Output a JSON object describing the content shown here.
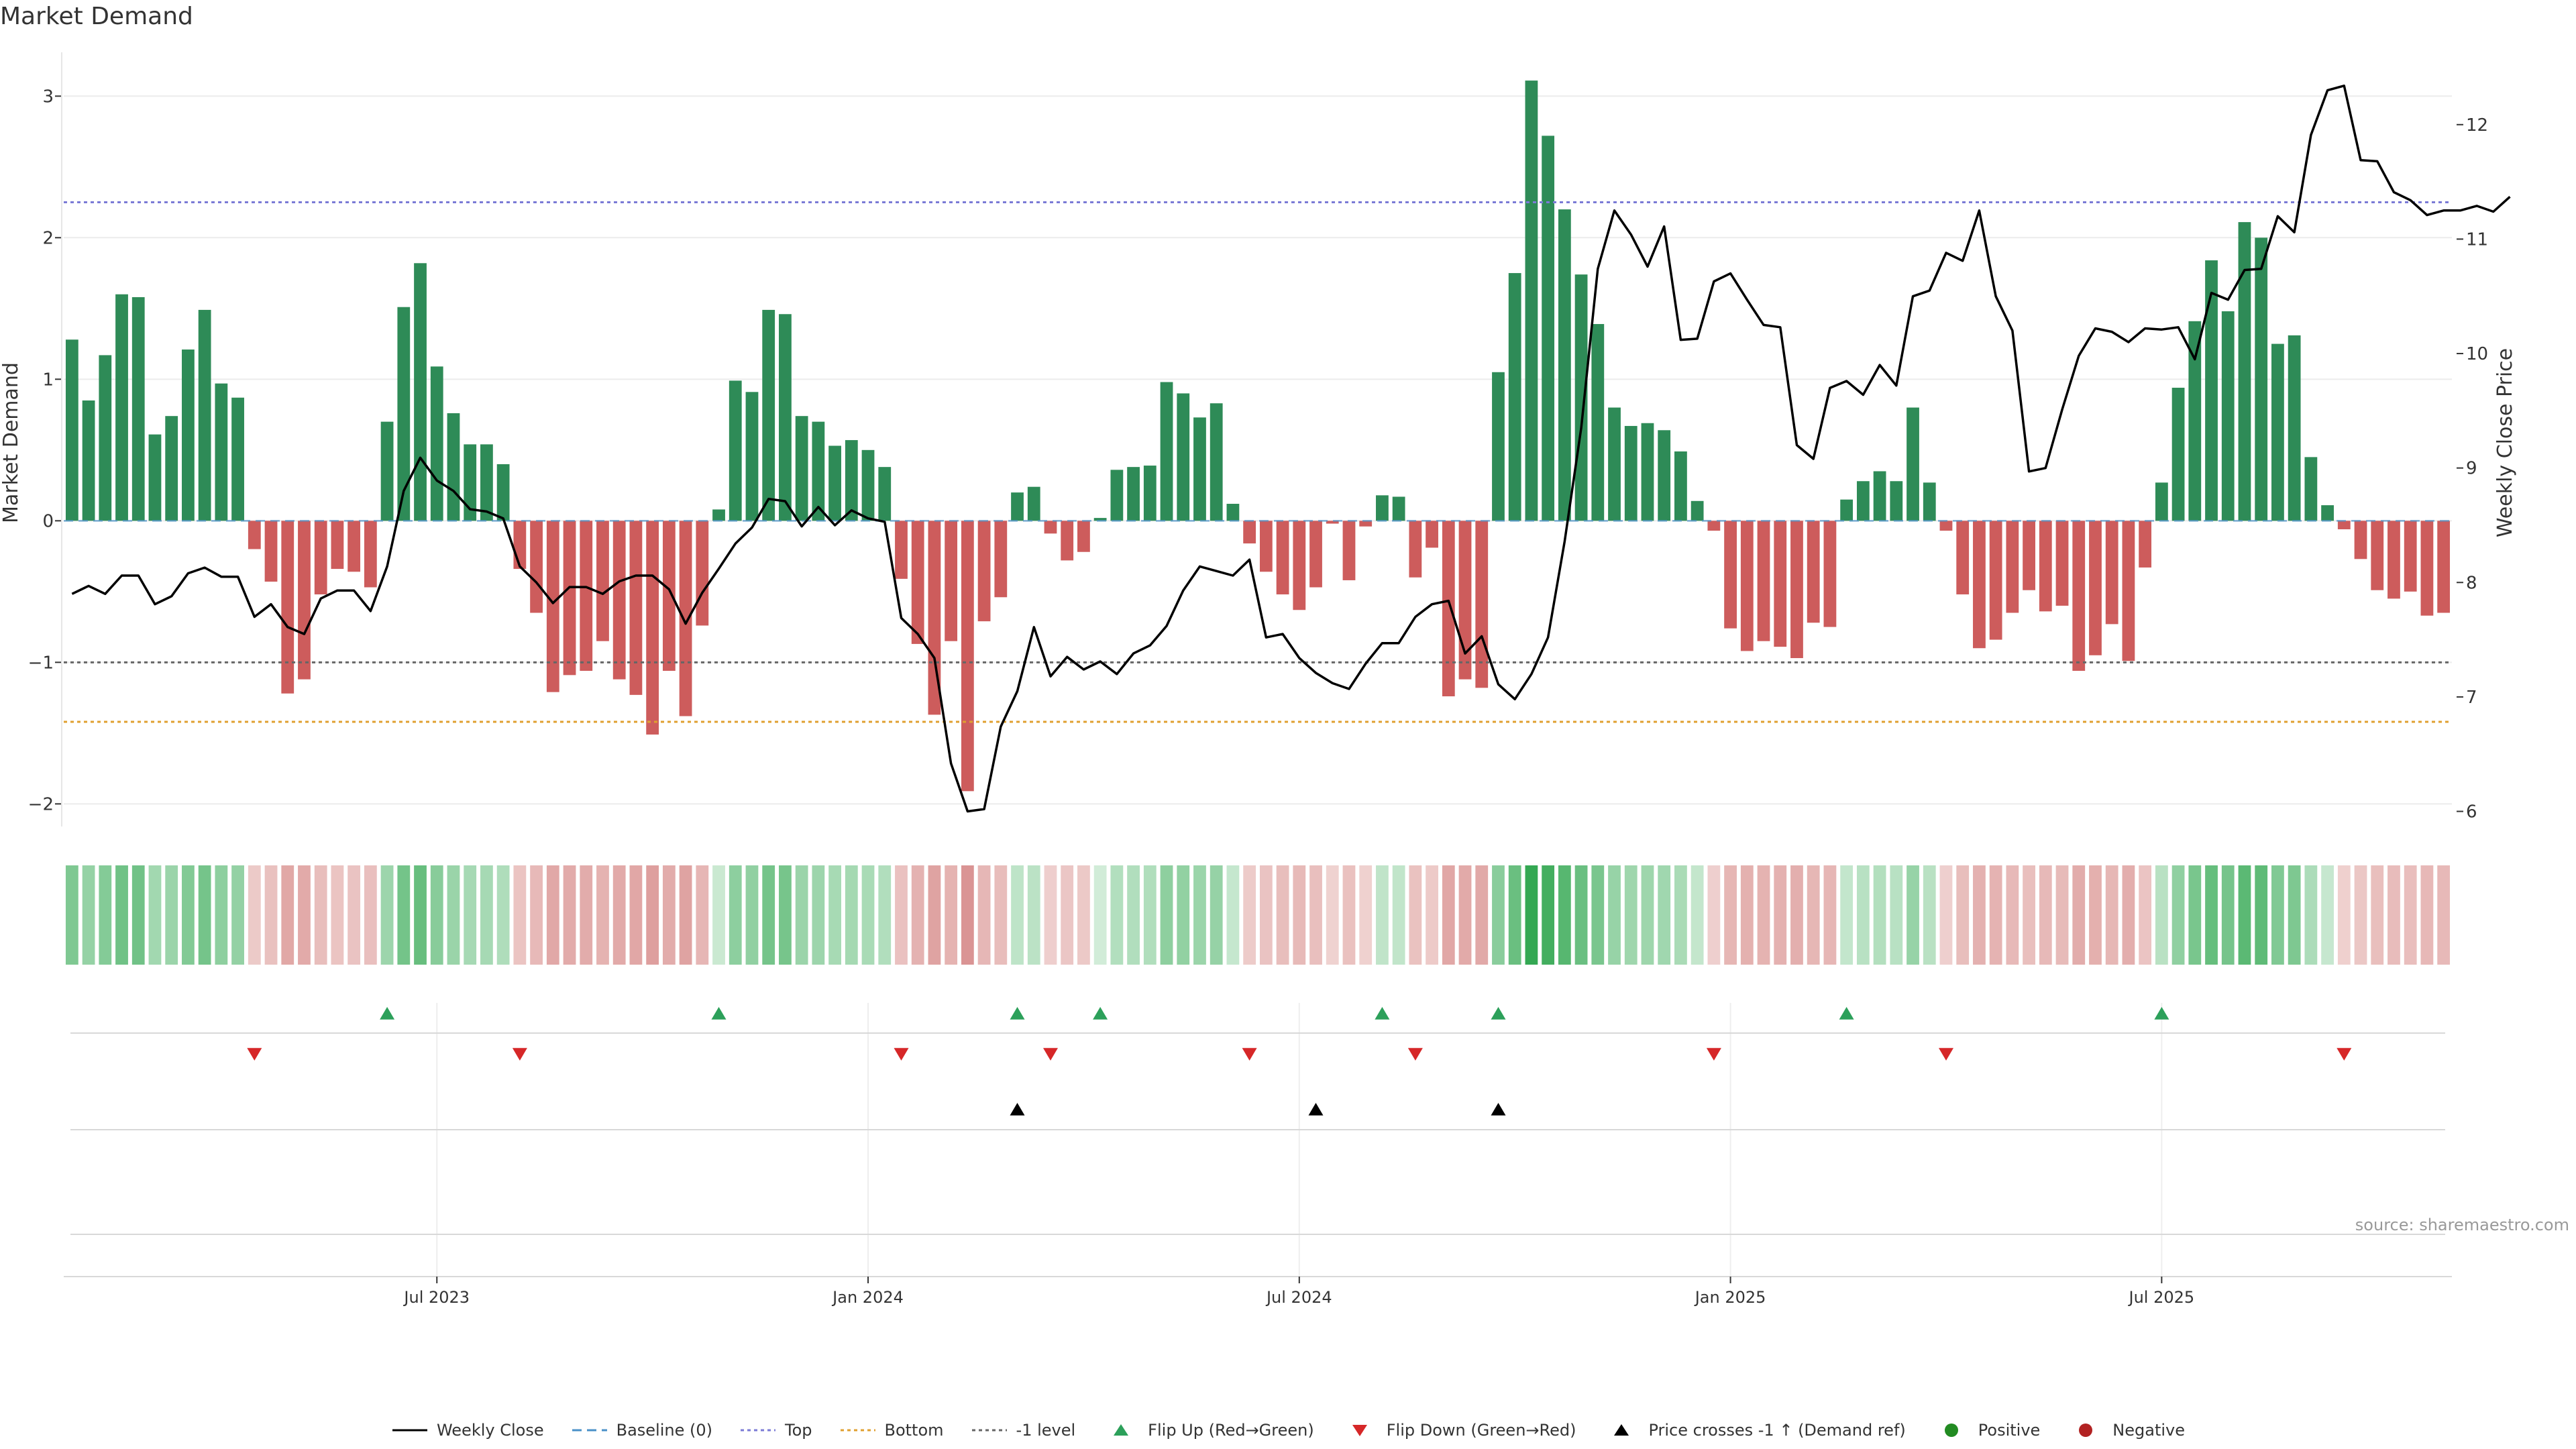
{
  "title": "Market Demand",
  "source": "source: sharemaestro.com",
  "chart_data": {
    "type": "bar",
    "title": "Market Demand",
    "xlabel": "",
    "ylabel": "Market Demand",
    "y2label": "Weekly Close Price",
    "ylim": [
      -2.15,
      3.3
    ],
    "y2lim": [
      5.88,
      12.62
    ],
    "yticks": [
      -2,
      -1,
      0,
      1,
      2,
      3
    ],
    "y2ticks": [
      6,
      7,
      8,
      9,
      10,
      11,
      12
    ],
    "ytick_labels": [
      "−2",
      "−1",
      "0",
      "1",
      "2",
      "3"
    ],
    "y2tick_labels": [
      "6",
      "7",
      "8",
      "9",
      "10",
      "11",
      "12"
    ],
    "xtick_labels": [
      "Jul 2023",
      "Jan 2024",
      "Jul 2024",
      "Jan 2025",
      "Jul 2025"
    ],
    "xtick_index": [
      22,
      48,
      74,
      100,
      126
    ],
    "reference_lines": {
      "top": 2.25,
      "bottom": -1.42,
      "minus_one": -1.0,
      "baseline": 0
    },
    "colors": {
      "positive": "#2e8b57",
      "negative": "#cd5c5c",
      "price": "#000000",
      "top": "#7b7bd6",
      "bottom": "#e0a030",
      "minus_one": "#666666",
      "baseline": "#4a90c8",
      "flip_up": "#2ca05a",
      "flip_down": "#d62728",
      "cross": "#000000"
    },
    "demand": [
      1.28,
      0.85,
      1.17,
      1.6,
      1.58,
      0.61,
      0.74,
      1.21,
      1.49,
      0.97,
      0.87,
      -0.2,
      -0.43,
      -1.22,
      -1.12,
      -0.52,
      -0.34,
      -0.36,
      -0.47,
      0.7,
      1.51,
      1.82,
      1.09,
      0.76,
      0.54,
      0.54,
      0.4,
      -0.34,
      -0.65,
      -1.21,
      -1.09,
      -1.06,
      -0.85,
      -1.12,
      -1.23,
      -1.51,
      -1.06,
      -1.38,
      -0.74,
      0.08,
      0.99,
      0.91,
      1.49,
      1.46,
      0.74,
      0.7,
      0.53,
      0.57,
      0.5,
      0.38,
      -0.41,
      -0.87,
      -1.37,
      -0.85,
      -1.91,
      -0.71,
      -0.54,
      0.2,
      0.24,
      -0.09,
      -0.28,
      -0.22,
      0.02,
      0.36,
      0.38,
      0.39,
      0.98,
      0.9,
      0.73,
      0.83,
      0.12,
      -0.16,
      -0.36,
      -0.52,
      -0.63,
      -0.47,
      -0.02,
      -0.42,
      -0.04,
      0.18,
      0.17,
      -0.4,
      -0.19,
      -1.24,
      -1.12,
      -1.18,
      1.05,
      1.75,
      3.11,
      2.72,
      2.2,
      1.74,
      1.39,
      0.8,
      0.67,
      0.69,
      0.64,
      0.49,
      0.14,
      -0.07,
      -0.76,
      -0.92,
      -0.85,
      -0.89,
      -0.97,
      -0.72,
      -0.75,
      0.15,
      0.28,
      0.35,
      0.28,
      0.8,
      0.27,
      -0.07,
      -0.52,
      -0.9,
      -0.84,
      -0.65,
      -0.49,
      -0.64,
      -0.6,
      -1.06,
      -0.95,
      -0.73,
      -0.99,
      -0.33,
      0.27,
      0.94,
      1.41,
      1.84,
      1.48,
      2.11,
      2.0,
      1.25,
      1.31,
      0.45,
      0.11,
      -0.06,
      -0.27,
      -0.49,
      -0.55,
      -0.5,
      -0.67,
      -0.65
    ],
    "price": [
      7.9,
      7.97,
      7.9,
      8.06,
      8.06,
      7.81,
      7.88,
      8.08,
      8.13,
      8.05,
      8.05,
      7.7,
      7.81,
      7.61,
      7.55,
      7.86,
      7.93,
      7.93,
      7.75,
      8.14,
      8.8,
      9.09,
      8.89,
      8.8,
      8.64,
      8.62,
      8.56,
      8.14,
      8.0,
      7.82,
      7.96,
      7.96,
      7.9,
      8.01,
      8.06,
      8.06,
      7.94,
      7.64,
      7.91,
      8.12,
      8.34,
      8.48,
      8.73,
      8.71,
      8.49,
      8.66,
      8.5,
      8.63,
      8.56,
      8.53,
      7.69,
      7.55,
      7.34,
      6.42,
      6.0,
      6.02,
      6.74,
      7.05,
      7.61,
      7.18,
      7.35,
      7.24,
      7.31,
      7.2,
      7.38,
      7.45,
      7.62,
      7.93,
      8.14,
      8.1,
      8.06,
      8.2,
      7.52,
      7.55,
      7.34,
      7.21,
      7.12,
      7.07,
      7.29,
      7.47,
      7.47,
      7.7,
      7.81,
      7.84,
      7.38,
      7.53,
      7.11,
      6.98,
      7.2,
      7.52,
      8.36,
      9.35,
      10.74,
      11.25,
      11.04,
      10.76,
      11.11,
      10.12,
      10.13,
      10.63,
      10.7,
      10.47,
      10.25,
      10.23,
      9.2,
      9.08,
      9.7,
      9.76,
      9.64,
      9.9,
      9.72,
      10.5,
      10.55,
      10.88,
      10.81,
      11.25,
      10.5,
      10.2,
      8.97,
      9.0,
      9.51,
      9.98,
      10.22,
      10.19,
      10.1,
      10.22,
      10.21,
      10.23,
      9.95,
      10.53,
      10.47,
      10.73,
      10.74,
      11.2,
      11.06,
      11.91,
      12.3,
      12.34,
      11.69,
      11.68,
      11.41,
      11.34,
      11.21,
      11.25,
      11.25,
      11.29,
      11.24,
      11.37
    ],
    "flip_up_index": [
      19,
      39,
      57,
      62,
      79,
      86,
      107,
      126
    ],
    "flip_down_index": [
      11,
      27,
      50,
      59,
      71,
      81,
      99,
      113,
      137
    ],
    "price_cross_up_index": [
      57,
      75,
      86
    ],
    "heat_strip": "one cell per week; color intensity follows sign and magnitude of demand"
  },
  "legend": [
    {
      "label": "Weekly Close",
      "icon": "solid-line-icon"
    },
    {
      "label": "Baseline (0)",
      "icon": "dashed-line-icon"
    },
    {
      "label": "Top",
      "icon": "dotted-line-icon"
    },
    {
      "label": "Bottom",
      "icon": "dotted-line-icon"
    },
    {
      "label": "-1 level",
      "icon": "dotted-line-icon"
    },
    {
      "label": "Flip Up (Red→Green)",
      "icon": "triangle-up-icon"
    },
    {
      "label": "Flip Down (Green→Red)",
      "icon": "triangle-down-icon"
    },
    {
      "label": "Price crosses -1 ↑ (Demand ref)",
      "icon": "triangle-up-icon"
    },
    {
      "label": "Positive",
      "icon": "circle-icon"
    },
    {
      "label": "Negative",
      "icon": "circle-icon"
    }
  ]
}
